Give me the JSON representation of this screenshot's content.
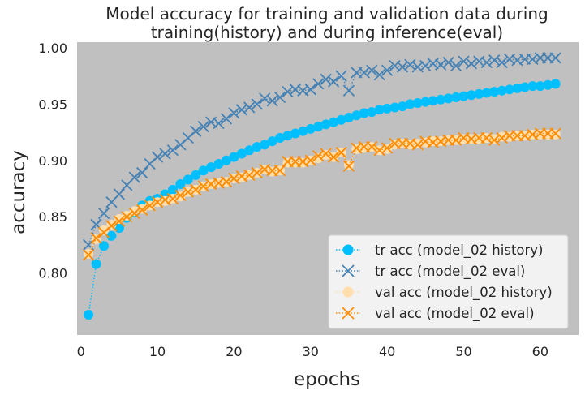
{
  "chart_data": {
    "type": "line",
    "title_lines": [
      "Model accuracy for training and validation data during",
      "training(history) and during inference(eval)"
    ],
    "xlabel": "epochs",
    "ylabel": "accuracy",
    "xlim": [
      -0.5,
      65
    ],
    "ylim": [
      0.745,
      1.005
    ],
    "xticks": [
      0,
      10,
      20,
      30,
      40,
      50,
      60
    ],
    "yticks": [
      0.8,
      0.85,
      0.9,
      0.95,
      1.0
    ],
    "ytick_labels": [
      "0.80",
      "0.85",
      "0.90",
      "0.95",
      "1.00"
    ],
    "grid": false,
    "background": "#c0c0c0",
    "legend_position": "lower-right",
    "series": [
      {
        "name": "tr acc (model_02 history)",
        "color": "#00bfff",
        "marker": "circle",
        "linestyle": "dotted",
        "x": [
          1,
          2,
          3,
          4,
          5,
          6,
          7,
          8,
          9,
          10,
          11,
          12,
          13,
          14,
          15,
          16,
          17,
          18,
          19,
          20,
          21,
          22,
          23,
          24,
          25,
          26,
          27,
          28,
          29,
          30,
          31,
          32,
          33,
          34,
          35,
          36,
          37,
          38,
          39,
          40,
          41,
          42,
          43,
          44,
          45,
          46,
          47,
          48,
          49,
          50,
          51,
          52,
          53,
          54,
          55,
          56,
          57,
          58,
          59,
          60,
          61,
          62
        ],
        "values": [
          0.763,
          0.808,
          0.824,
          0.833,
          0.84,
          0.849,
          0.854,
          0.86,
          0.864,
          0.866,
          0.87,
          0.874,
          0.879,
          0.883,
          0.887,
          0.891,
          0.894,
          0.897,
          0.9,
          0.903,
          0.906,
          0.909,
          0.912,
          0.914,
          0.917,
          0.92,
          0.922,
          0.924,
          0.926,
          0.928,
          0.93,
          0.932,
          0.934,
          0.936,
          0.938,
          0.94,
          0.942,
          0.943,
          0.945,
          0.946,
          0.947,
          0.948,
          0.95,
          0.951,
          0.952,
          0.953,
          0.954,
          0.955,
          0.956,
          0.957,
          0.958,
          0.959,
          0.96,
          0.961,
          0.962,
          0.963,
          0.964,
          0.965,
          0.966,
          0.966,
          0.967,
          0.968
        ]
      },
      {
        "name": "tr acc (model_02 eval)",
        "color": "#4682b4",
        "marker": "x",
        "linestyle": "dotted",
        "x": [
          1,
          2,
          3,
          4,
          5,
          6,
          7,
          8,
          9,
          10,
          11,
          12,
          13,
          14,
          15,
          16,
          17,
          18,
          19,
          20,
          21,
          22,
          23,
          24,
          25,
          26,
          27,
          28,
          29,
          30,
          31,
          32,
          33,
          34,
          35,
          36,
          37,
          38,
          39,
          40,
          41,
          42,
          43,
          44,
          45,
          46,
          47,
          48,
          49,
          50,
          51,
          52,
          53,
          54,
          55,
          56,
          57,
          58,
          59,
          60,
          61,
          62
        ],
        "values": [
          0.825,
          0.843,
          0.853,
          0.863,
          0.87,
          0.878,
          0.885,
          0.889,
          0.897,
          0.903,
          0.906,
          0.909,
          0.914,
          0.92,
          0.926,
          0.93,
          0.934,
          0.933,
          0.937,
          0.942,
          0.945,
          0.947,
          0.95,
          0.955,
          0.953,
          0.956,
          0.961,
          0.963,
          0.962,
          0.963,
          0.968,
          0.972,
          0.97,
          0.975,
          0.962,
          0.978,
          0.978,
          0.98,
          0.976,
          0.98,
          0.984,
          0.983,
          0.985,
          0.983,
          0.984,
          0.986,
          0.985,
          0.987,
          0.984,
          0.988,
          0.986,
          0.988,
          0.987,
          0.989,
          0.987,
          0.99,
          0.989,
          0.99,
          0.99,
          0.991,
          0.991,
          0.991
        ]
      },
      {
        "name": "val acc (model_02 history)",
        "color": "#ffdead",
        "marker": "circle",
        "linestyle": "dotted",
        "x": [
          1,
          2,
          3,
          4,
          5,
          6,
          7,
          8,
          9,
          10,
          11,
          12,
          13,
          14,
          15,
          16,
          17,
          18,
          19,
          20,
          21,
          22,
          23,
          24,
          25,
          26,
          27,
          28,
          29,
          30,
          31,
          32,
          33,
          34,
          35,
          36,
          37,
          38,
          39,
          40,
          41,
          42,
          43,
          44,
          45,
          46,
          47,
          48,
          49,
          50,
          51,
          52,
          53,
          54,
          55,
          56,
          57,
          58,
          59,
          60,
          61,
          62
        ],
        "values": [
          0.817,
          0.83,
          0.838,
          0.843,
          0.848,
          0.851,
          0.855,
          0.857,
          0.86,
          0.863,
          0.864,
          0.866,
          0.868,
          0.872,
          0.874,
          0.877,
          0.879,
          0.88,
          0.881,
          0.884,
          0.885,
          0.887,
          0.889,
          0.892,
          0.89,
          0.891,
          0.898,
          0.898,
          0.898,
          0.9,
          0.902,
          0.905,
          0.903,
          0.907,
          0.896,
          0.91,
          0.911,
          0.912,
          0.909,
          0.91,
          0.914,
          0.915,
          0.914,
          0.915,
          0.916,
          0.917,
          0.917,
          0.918,
          0.918,
          0.919,
          0.919,
          0.919,
          0.92,
          0.919,
          0.921,
          0.921,
          0.922,
          0.922,
          0.923,
          0.923,
          0.923,
          0.923
        ]
      },
      {
        "name": "val acc (model_02 eval)",
        "color": "#ff8c00",
        "marker": "x",
        "linestyle": "dotted",
        "x": [
          1,
          2,
          3,
          4,
          5,
          6,
          7,
          8,
          9,
          10,
          11,
          12,
          13,
          14,
          15,
          16,
          17,
          18,
          19,
          20,
          21,
          22,
          23,
          24,
          25,
          26,
          27,
          28,
          29,
          30,
          31,
          32,
          33,
          34,
          35,
          36,
          37,
          38,
          39,
          40,
          41,
          42,
          43,
          44,
          45,
          46,
          47,
          48,
          49,
          50,
          51,
          52,
          53,
          54,
          55,
          56,
          57,
          58,
          59,
          60,
          61,
          62
        ],
        "values": [
          0.816,
          0.831,
          0.836,
          0.842,
          0.846,
          0.85,
          0.853,
          0.856,
          0.86,
          0.863,
          0.865,
          0.866,
          0.869,
          0.872,
          0.874,
          0.877,
          0.879,
          0.88,
          0.881,
          0.884,
          0.886,
          0.887,
          0.889,
          0.892,
          0.891,
          0.891,
          0.899,
          0.899,
          0.899,
          0.9,
          0.904,
          0.906,
          0.903,
          0.907,
          0.895,
          0.911,
          0.912,
          0.912,
          0.909,
          0.911,
          0.915,
          0.915,
          0.915,
          0.914,
          0.917,
          0.916,
          0.917,
          0.918,
          0.918,
          0.92,
          0.919,
          0.92,
          0.92,
          0.918,
          0.92,
          0.922,
          0.922,
          0.922,
          0.923,
          0.924,
          0.924,
          0.924
        ]
      }
    ]
  }
}
